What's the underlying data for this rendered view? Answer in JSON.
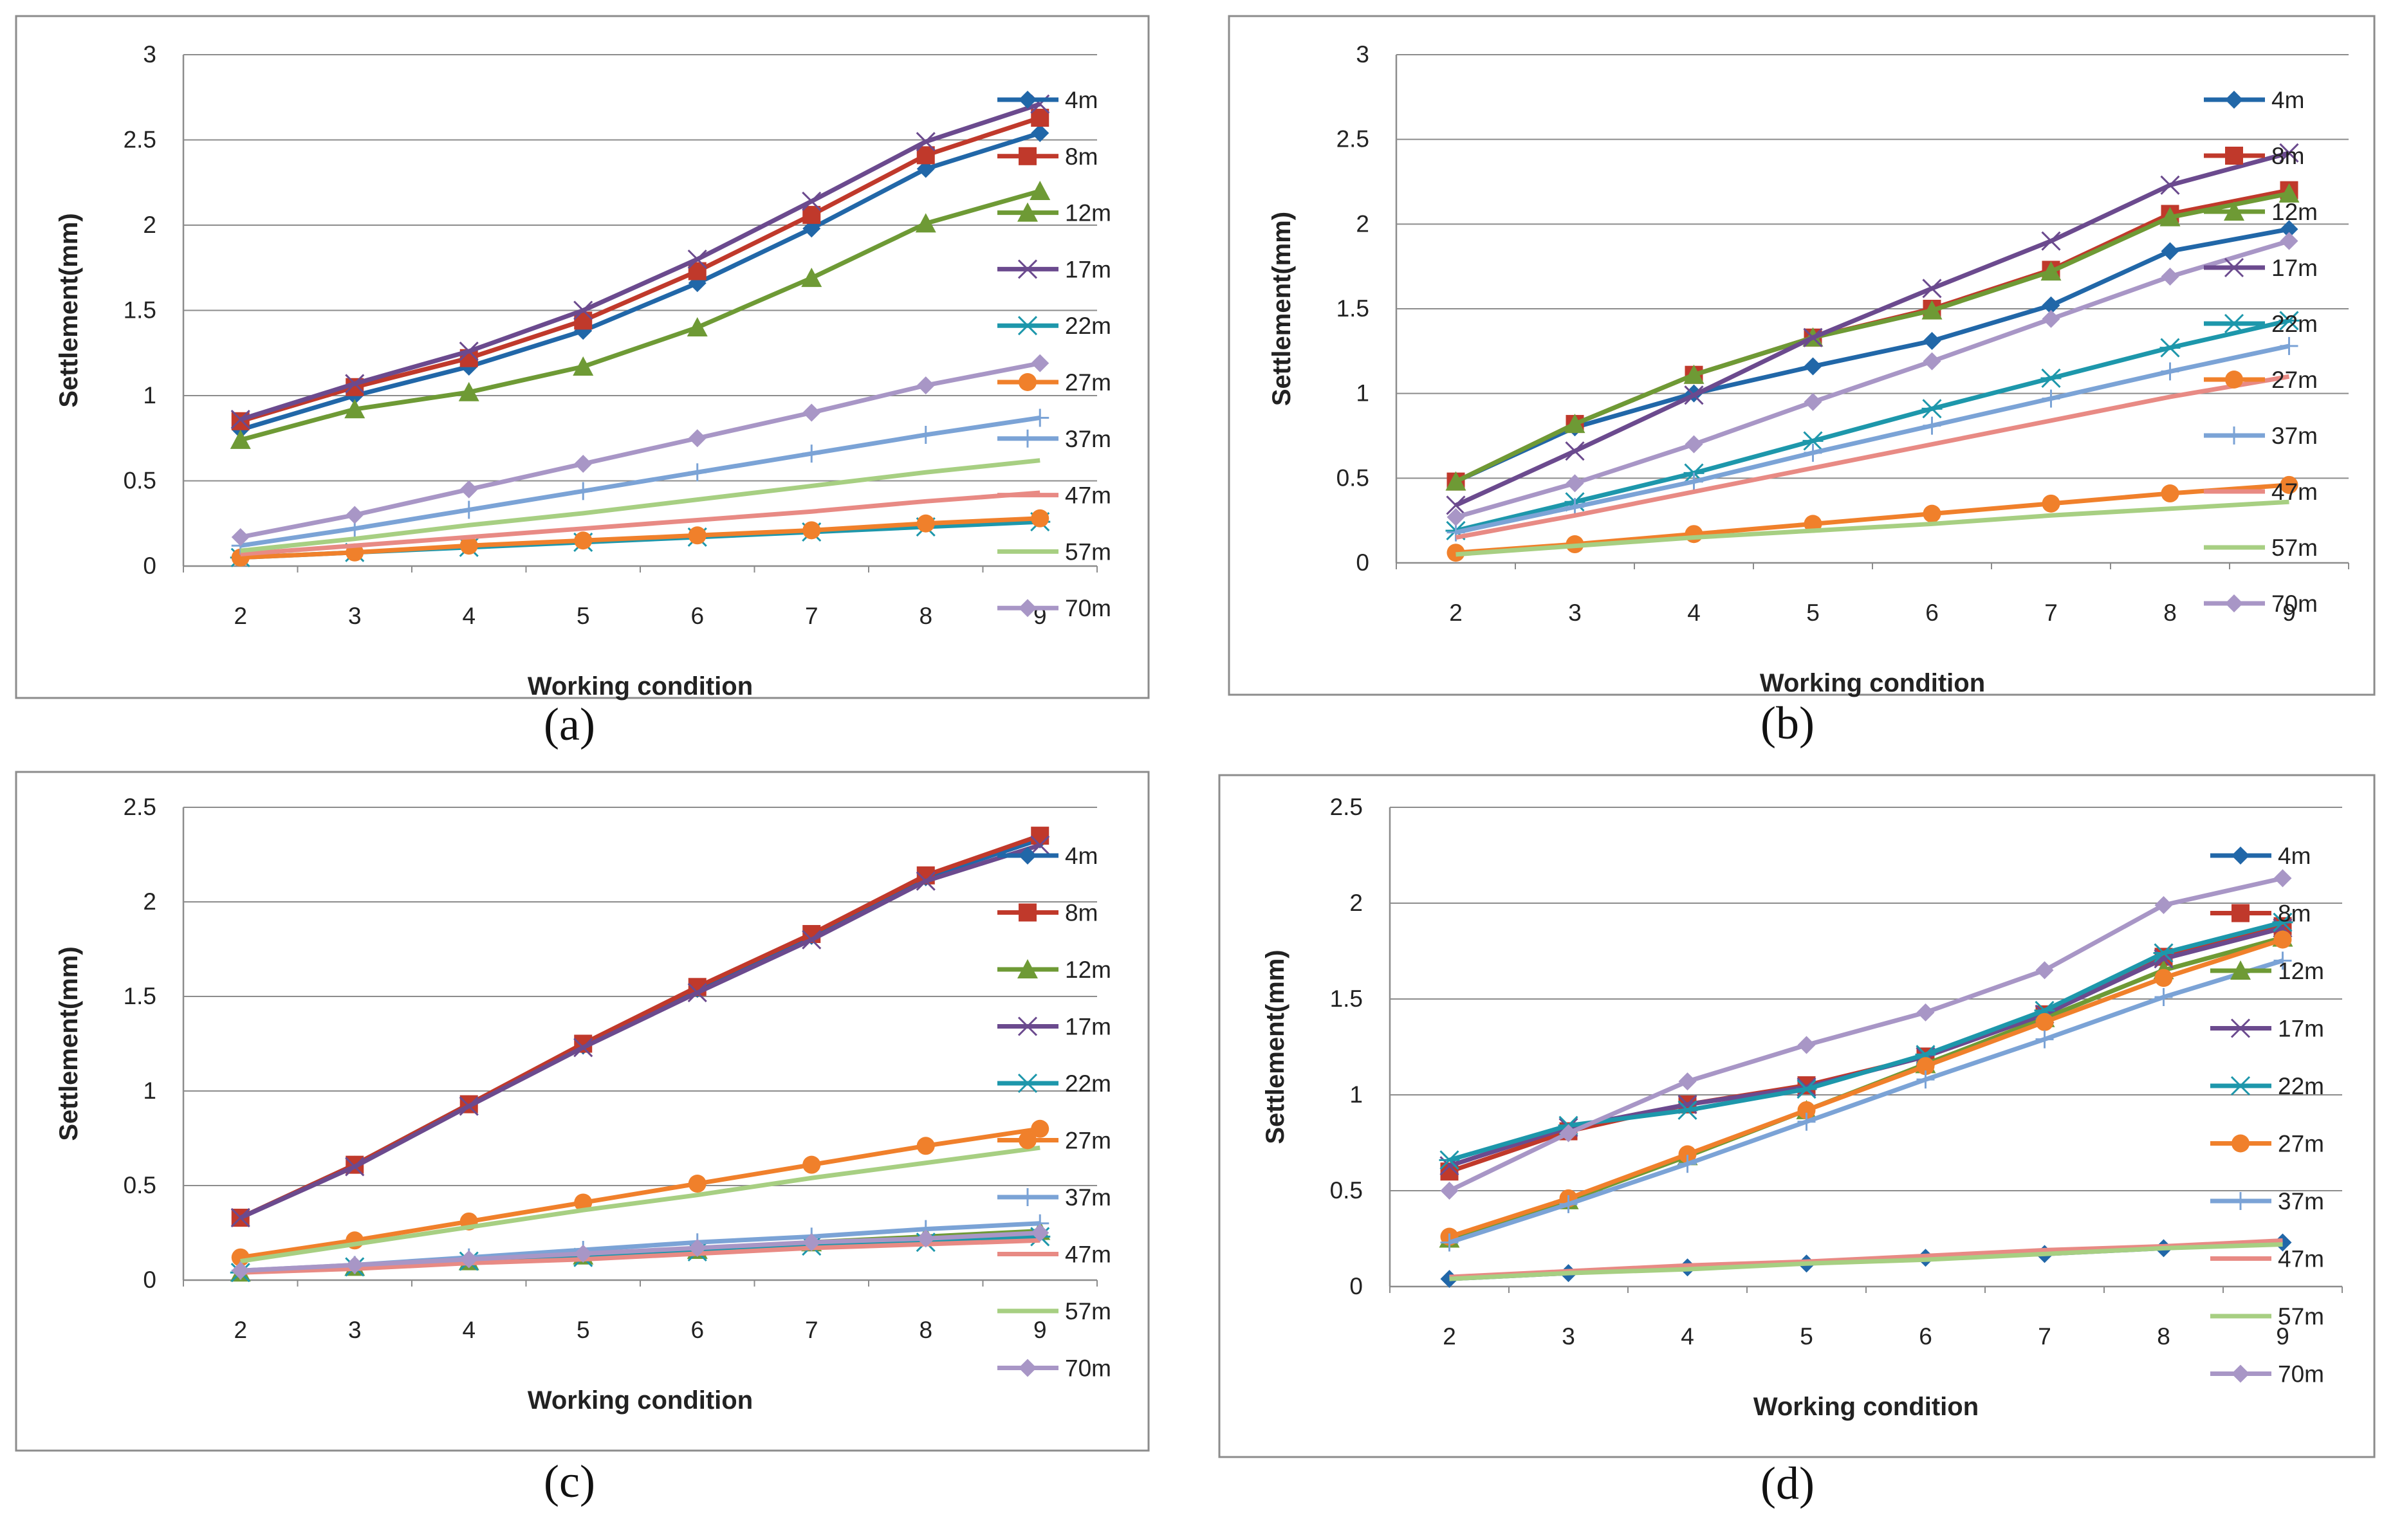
{
  "figure": {
    "panels": [
      "(a)",
      "(b)",
      "(c)",
      "(d)"
    ]
  },
  "colors": {
    "4m": "#2167a8",
    "8m": "#c0392b",
    "12m": "#6e9a35",
    "17m": "#6b4a8e",
    "22m": "#1d97ab",
    "27m": "#f0802b",
    "37m": "#7ba3d6",
    "47m": "#e88a84",
    "57m": "#a7cf82",
    "70m": "#a896c6"
  },
  "markers": {
    "4m": "diamond",
    "8m": "square",
    "12m": "triangle",
    "17m": "x",
    "22m": "star",
    "27m": "circle",
    "37m": "plus",
    "47m": "none",
    "57m": "none",
    "70m": "diamond"
  },
  "chart_data": [
    {
      "type": "line",
      "panel_label": "(a)",
      "xlabel": "Working condition",
      "ylabel": "Settlement(mm)",
      "x": [
        2,
        3,
        4,
        5,
        6,
        7,
        8,
        9
      ],
      "ylim": [
        0,
        3
      ],
      "yticks": [
        "0",
        "0.5",
        "1",
        "1.5",
        "2",
        "2.5",
        "3"
      ],
      "grid": true,
      "legend_position": "right",
      "series": [
        {
          "name": "4m",
          "values": [
            0.8,
            1.0,
            1.17,
            1.38,
            1.66,
            1.98,
            2.33,
            2.54
          ]
        },
        {
          "name": "8m",
          "values": [
            0.85,
            1.05,
            1.22,
            1.44,
            1.73,
            2.06,
            2.41,
            2.63
          ]
        },
        {
          "name": "12m",
          "values": [
            0.74,
            0.92,
            1.02,
            1.17,
            1.4,
            1.69,
            2.01,
            2.2
          ]
        },
        {
          "name": "17m",
          "values": [
            0.86,
            1.07,
            1.26,
            1.5,
            1.8,
            2.14,
            2.49,
            2.71
          ]
        },
        {
          "name": "22m",
          "values": [
            0.05,
            0.08,
            0.11,
            0.14,
            0.17,
            0.2,
            0.23,
            0.26
          ]
        },
        {
          "name": "27m",
          "values": [
            0.05,
            0.08,
            0.12,
            0.15,
            0.18,
            0.21,
            0.25,
            0.28
          ]
        },
        {
          "name": "37m",
          "values": [
            0.12,
            0.22,
            0.33,
            0.44,
            0.55,
            0.66,
            0.77,
            0.87
          ]
        },
        {
          "name": "47m",
          "values": [
            0.07,
            0.12,
            0.17,
            0.22,
            0.27,
            0.32,
            0.38,
            0.43
          ]
        },
        {
          "name": "57m",
          "values": [
            0.09,
            0.16,
            0.24,
            0.31,
            0.39,
            0.47,
            0.55,
            0.62
          ]
        },
        {
          "name": "70m",
          "values": [
            0.17,
            0.3,
            0.45,
            0.6,
            0.75,
            0.9,
            1.06,
            1.19
          ]
        }
      ]
    },
    {
      "type": "line",
      "panel_label": "(b)",
      "xlabel": "Working condition",
      "ylabel": "Settlement(mm)",
      "x": [
        2,
        3,
        4,
        5,
        6,
        7,
        8,
        9
      ],
      "ylim": [
        0,
        3
      ],
      "yticks": [
        "0",
        "0.5",
        "1",
        "1.5",
        "2",
        "2.5",
        "3"
      ],
      "grid": true,
      "legend_position": "right",
      "series": [
        {
          "name": "4m",
          "values": [
            0.48,
            0.8,
            1.0,
            1.16,
            1.31,
            1.52,
            1.84,
            1.97
          ]
        },
        {
          "name": "8m",
          "values": [
            0.48,
            0.82,
            1.11,
            1.33,
            1.5,
            1.73,
            2.06,
            2.2
          ]
        },
        {
          "name": "12m",
          "values": [
            0.48,
            0.82,
            1.11,
            1.33,
            1.49,
            1.72,
            2.04,
            2.18
          ]
        },
        {
          "name": "17m",
          "values": [
            0.34,
            0.66,
            0.99,
            1.33,
            1.62,
            1.9,
            2.23,
            2.42
          ]
        },
        {
          "name": "22m",
          "values": [
            0.19,
            0.36,
            0.53,
            0.72,
            0.91,
            1.09,
            1.27,
            1.43
          ]
        },
        {
          "name": "27m",
          "values": [
            0.06,
            0.11,
            0.17,
            0.23,
            0.29,
            0.35,
            0.41,
            0.46
          ]
        },
        {
          "name": "37m",
          "values": [
            0.18,
            0.33,
            0.48,
            0.65,
            0.81,
            0.97,
            1.13,
            1.28
          ]
        },
        {
          "name": "47m",
          "values": [
            0.15,
            0.28,
            0.42,
            0.56,
            0.7,
            0.84,
            0.98,
            1.1
          ]
        },
        {
          "name": "57m",
          "values": [
            0.05,
            0.1,
            0.15,
            0.19,
            0.23,
            0.28,
            0.32,
            0.36
          ]
        },
        {
          "name": "70m",
          "values": [
            0.27,
            0.47,
            0.7,
            0.95,
            1.19,
            1.44,
            1.69,
            1.9
          ]
        }
      ]
    },
    {
      "type": "line",
      "panel_label": "(c)",
      "xlabel": "Working condition",
      "ylabel": "Settlement(mm)",
      "x": [
        2,
        3,
        4,
        5,
        6,
        7,
        8,
        9
      ],
      "ylim": [
        0,
        2.5
      ],
      "yticks": [
        "0",
        "0.5",
        "1",
        "1.5",
        "2",
        "2.5"
      ],
      "grid": true,
      "legend_position": "right",
      "series": [
        {
          "name": "4m",
          "values": [
            0.33,
            0.61,
            0.93,
            1.24,
            1.54,
            1.82,
            2.13,
            2.33
          ]
        },
        {
          "name": "8m",
          "values": [
            0.33,
            0.61,
            0.93,
            1.25,
            1.55,
            1.83,
            2.14,
            2.35
          ]
        },
        {
          "name": "12m",
          "values": [
            0.04,
            0.07,
            0.1,
            0.13,
            0.16,
            0.2,
            0.23,
            0.26
          ]
        },
        {
          "name": "17m",
          "values": [
            0.33,
            0.6,
            0.92,
            1.23,
            1.52,
            1.8,
            2.11,
            2.3
          ]
        },
        {
          "name": "22m",
          "values": [
            0.04,
            0.07,
            0.1,
            0.12,
            0.15,
            0.18,
            0.2,
            0.23
          ]
        },
        {
          "name": "27m",
          "values": [
            0.12,
            0.21,
            0.31,
            0.41,
            0.51,
            0.61,
            0.71,
            0.8
          ]
        },
        {
          "name": "37m",
          "values": [
            0.05,
            0.08,
            0.12,
            0.16,
            0.2,
            0.23,
            0.27,
            0.3
          ]
        },
        {
          "name": "47m",
          "values": [
            0.04,
            0.06,
            0.09,
            0.11,
            0.14,
            0.17,
            0.19,
            0.21
          ]
        },
        {
          "name": "57m",
          "values": [
            0.1,
            0.19,
            0.28,
            0.37,
            0.45,
            0.54,
            0.62,
            0.7
          ]
        },
        {
          "name": "70m",
          "values": [
            0.05,
            0.08,
            0.11,
            0.14,
            0.17,
            0.2,
            0.22,
            0.25
          ]
        }
      ]
    },
    {
      "type": "line",
      "panel_label": "(d)",
      "xlabel": "Working condition",
      "ylabel": "Settlement(mm)",
      "x": [
        2,
        3,
        4,
        5,
        6,
        7,
        8,
        9
      ],
      "ylim": [
        0,
        2.5
      ],
      "yticks": [
        "0",
        "0.5",
        "1",
        "1.5",
        "2",
        "2.5"
      ],
      "grid": true,
      "legend_position": "right",
      "series": [
        {
          "name": "4m",
          "values": [
            0.04,
            0.07,
            0.1,
            0.12,
            0.15,
            0.17,
            0.2,
            0.23
          ]
        },
        {
          "name": "8m",
          "values": [
            0.6,
            0.81,
            0.95,
            1.05,
            1.2,
            1.42,
            1.72,
            1.88
          ]
        },
        {
          "name": "12m",
          "values": [
            0.25,
            0.45,
            0.68,
            0.92,
            1.16,
            1.4,
            1.65,
            1.82
          ]
        },
        {
          "name": "17m",
          "values": [
            0.63,
            0.83,
            0.95,
            1.04,
            1.2,
            1.42,
            1.71,
            1.87
          ]
        },
        {
          "name": "22m",
          "values": [
            0.66,
            0.84,
            0.92,
            1.03,
            1.21,
            1.44,
            1.74,
            1.9
          ]
        },
        {
          "name": "27m",
          "values": [
            0.26,
            0.46,
            0.69,
            0.92,
            1.15,
            1.38,
            1.61,
            1.81
          ]
        },
        {
          "name": "37m",
          "values": [
            0.23,
            0.43,
            0.64,
            0.86,
            1.08,
            1.29,
            1.51,
            1.7
          ]
        },
        {
          "name": "47m",
          "values": [
            0.05,
            0.08,
            0.11,
            0.13,
            0.16,
            0.19,
            0.21,
            0.24
          ]
        },
        {
          "name": "57m",
          "values": [
            0.04,
            0.07,
            0.09,
            0.12,
            0.14,
            0.17,
            0.2,
            0.22
          ]
        },
        {
          "name": "70m",
          "values": [
            0.5,
            0.8,
            1.07,
            1.26,
            1.43,
            1.65,
            1.99,
            2.13
          ]
        }
      ]
    }
  ]
}
